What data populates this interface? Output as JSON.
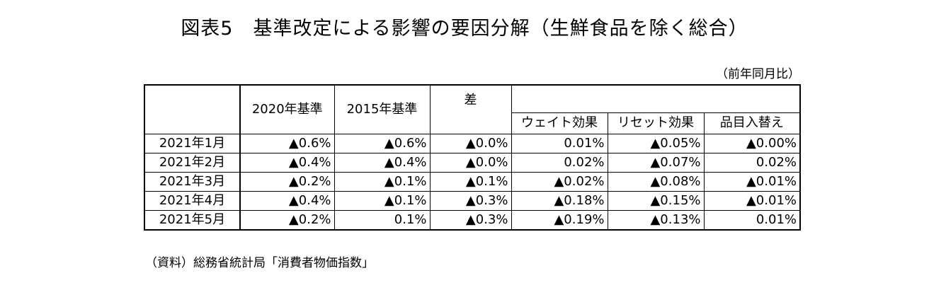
{
  "title": "図表5　基準改定による影響の要因分解（生鮮食品を除く総合）",
  "unit_note": "（前年同月比）",
  "source_note": "（資料）総務省統計局「消費者物価指数」",
  "table": {
    "headers": {
      "base2020": "2020年基準",
      "base2015": "2015年基準",
      "difference": "差",
      "weight_effect": "ウェイト効果",
      "reset_effect": "リセット効果",
      "item_replacement": "品目入替え"
    },
    "rows": [
      {
        "month": "2021年1月",
        "base2020": "▲0.6%",
        "base2015": "▲0.6%",
        "difference": "▲0.0%",
        "weight_effect": "0.01%",
        "reset_effect": "▲0.05%",
        "item_replacement": "▲0.00%"
      },
      {
        "month": "2021年2月",
        "base2020": "▲0.4%",
        "base2015": "▲0.4%",
        "difference": "▲0.0%",
        "weight_effect": "0.02%",
        "reset_effect": "▲0.07%",
        "item_replacement": "0.02%"
      },
      {
        "month": "2021年3月",
        "base2020": "▲0.2%",
        "base2015": "▲0.1%",
        "difference": "▲0.1%",
        "weight_effect": "▲0.02%",
        "reset_effect": "▲0.08%",
        "item_replacement": "▲0.01%"
      },
      {
        "month": "2021年4月",
        "base2020": "▲0.4%",
        "base2015": "▲0.1%",
        "difference": "▲0.3%",
        "weight_effect": "▲0.18%",
        "reset_effect": "▲0.15%",
        "item_replacement": "▲0.01%"
      },
      {
        "month": "2021年5月",
        "base2020": "▲0.2%",
        "base2015": "0.1%",
        "difference": "▲0.3%",
        "weight_effect": "▲0.19%",
        "reset_effect": "▲0.13%",
        "item_replacement": "0.01%"
      }
    ]
  }
}
